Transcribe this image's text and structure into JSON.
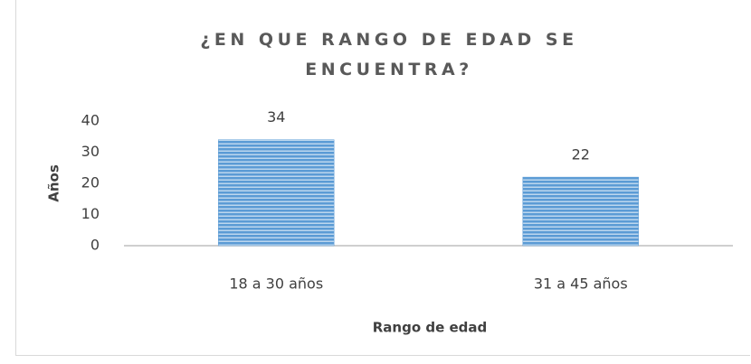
{
  "chart_data": {
    "type": "bar",
    "title": "¿EN QUE RANGO DE EDAD SE ENCUENTRA?",
    "x_label": "Rango de edad",
    "y_label": "Años",
    "categories": [
      "18 a 30 años",
      "31 a 45 años"
    ],
    "values": [
      34,
      22
    ],
    "color": "#5b9bd5",
    "ylim": [
      0,
      40
    ],
    "yticks": [
      0,
      10,
      20,
      30,
      40
    ],
    "grid": false
  }
}
